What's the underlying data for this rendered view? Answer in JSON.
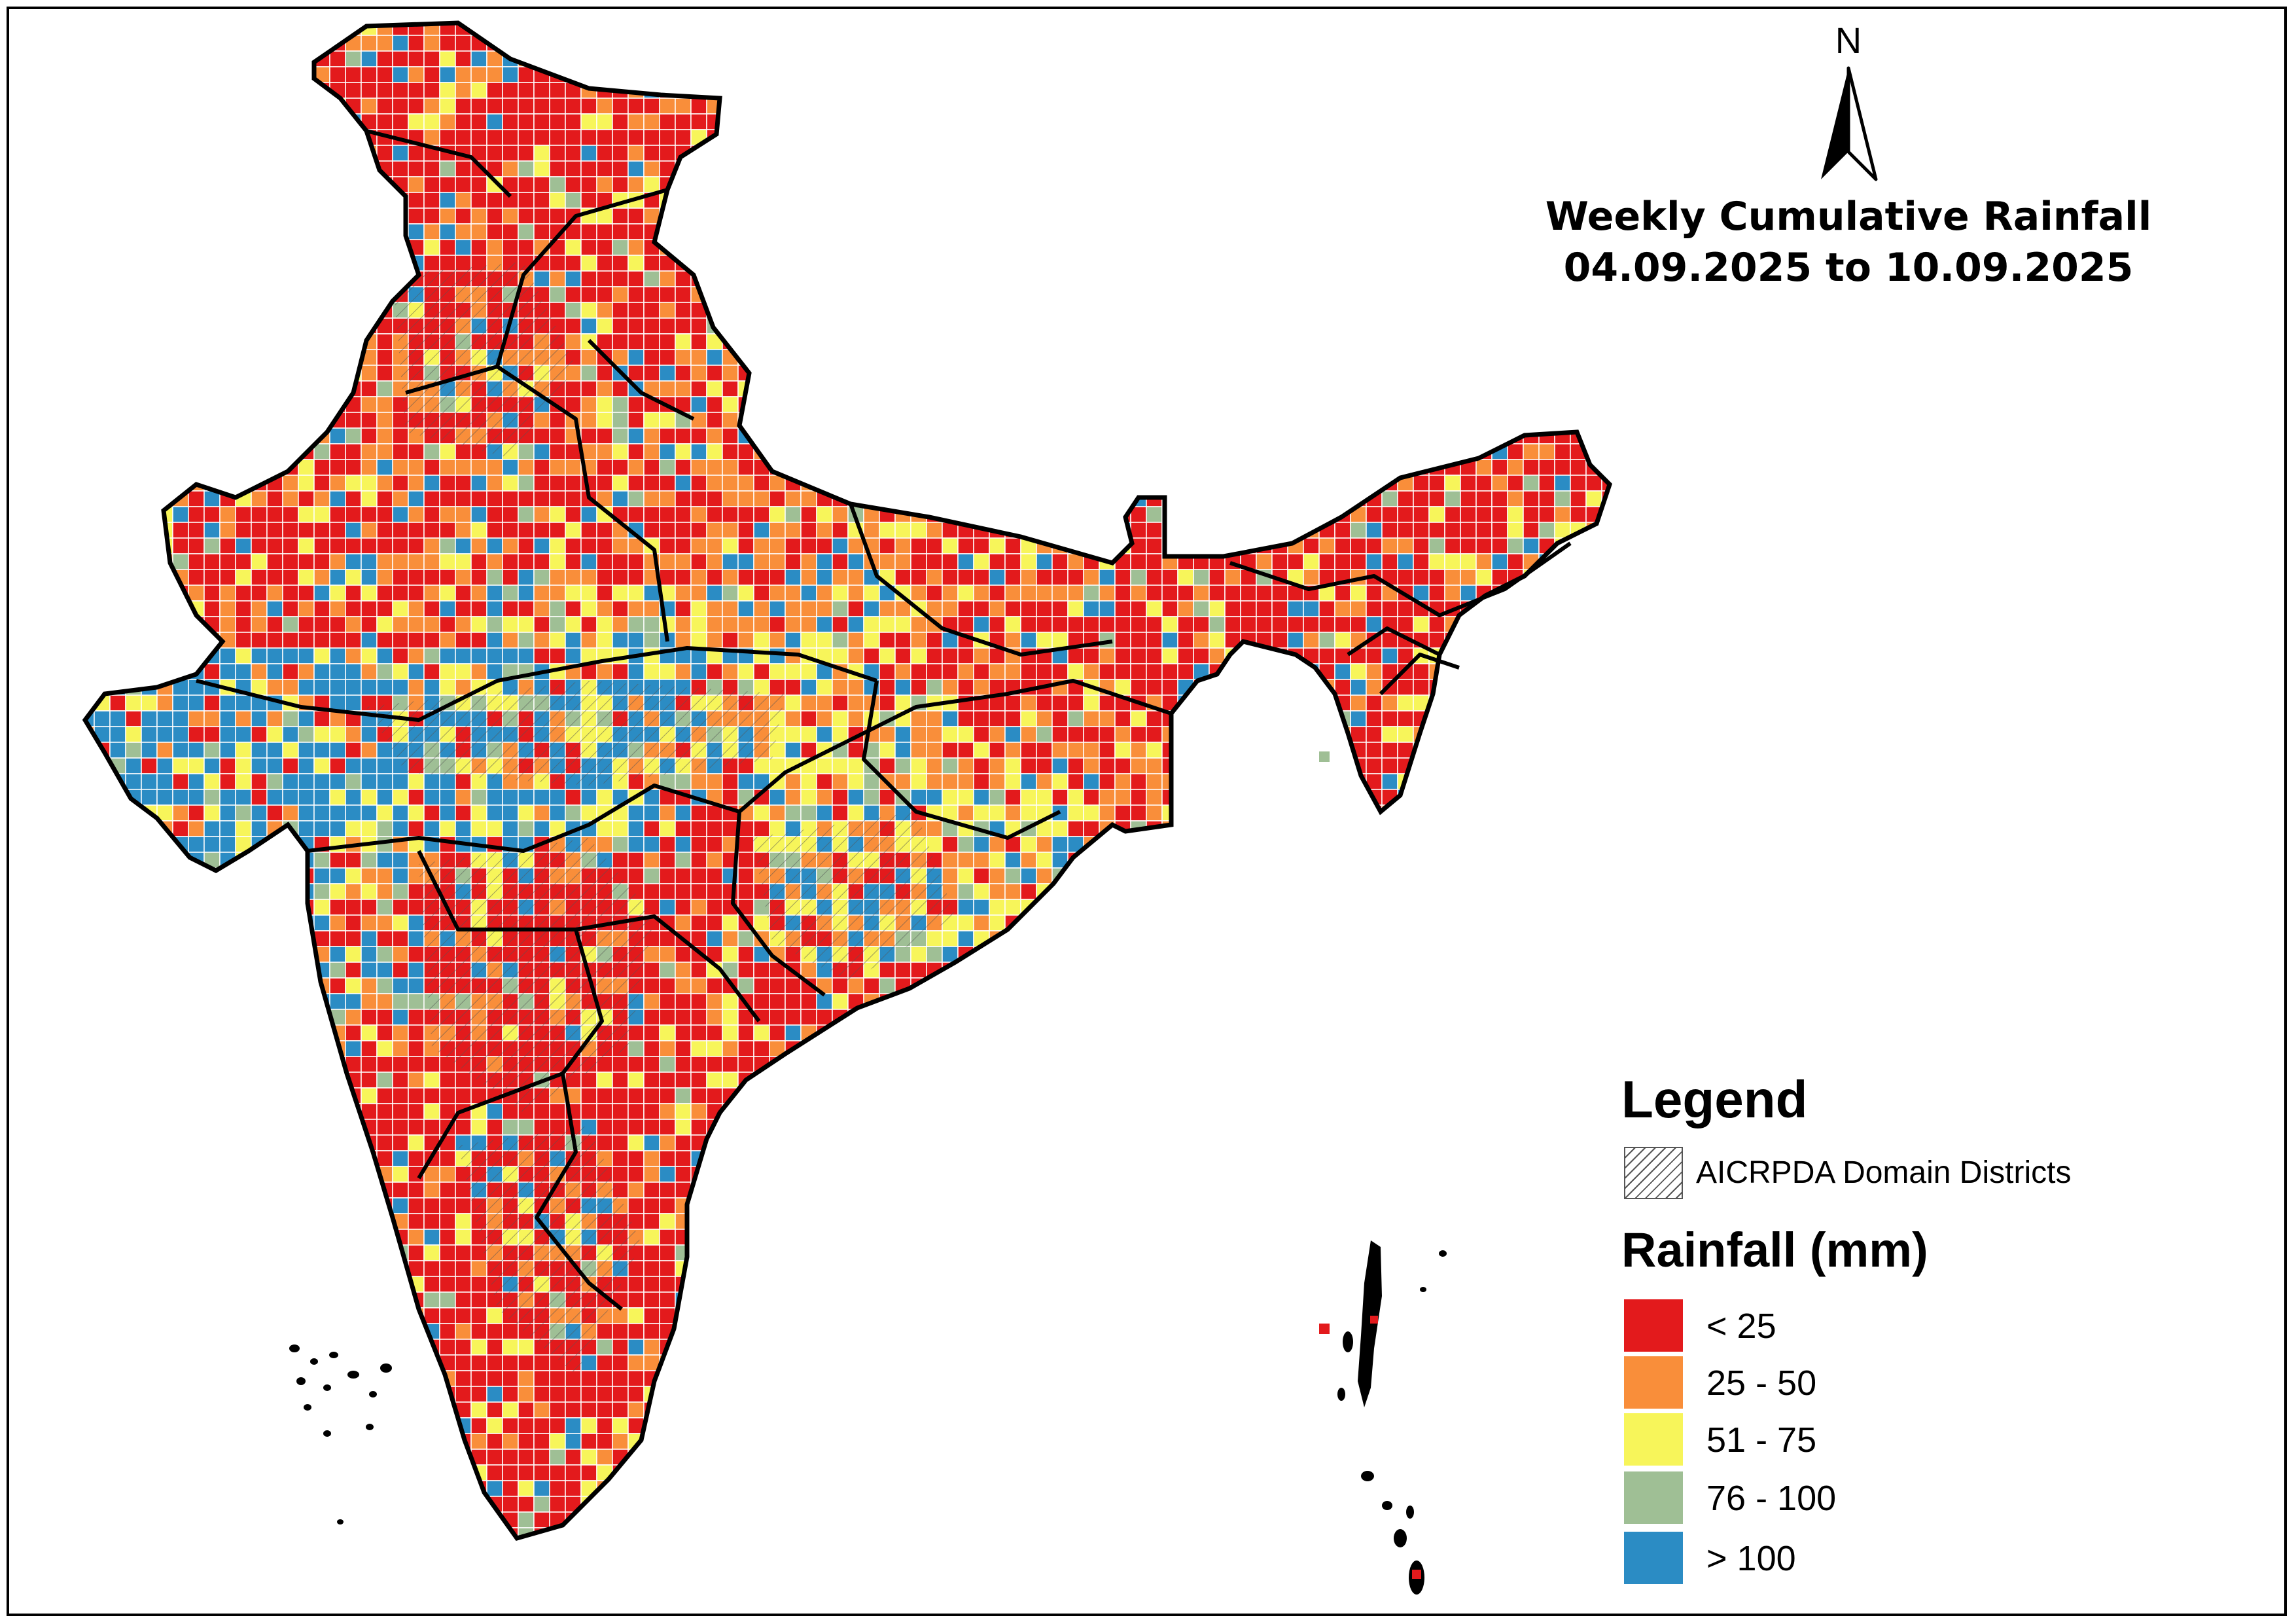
{
  "map": {
    "title_line1": "Weekly Cumulative Rainfall",
    "title_line2": "04.09.2025 to 10.09.2025",
    "north_label": "N"
  },
  "legend": {
    "title": "Legend",
    "hatch_label": "AICRPDA Domain Districts",
    "rainfall_title": "Rainfall (mm)",
    "classes": [
      {
        "label": "< 25",
        "color": "#e31a1c"
      },
      {
        "label": "25 - 50",
        "color": "#f98e3a"
      },
      {
        "label": "51 - 75",
        "color": "#f7f55a"
      },
      {
        "label": "76 - 100",
        "color": "#9fbf95"
      },
      {
        "label": "> 100",
        "color": "#2b8cc4"
      }
    ]
  }
}
